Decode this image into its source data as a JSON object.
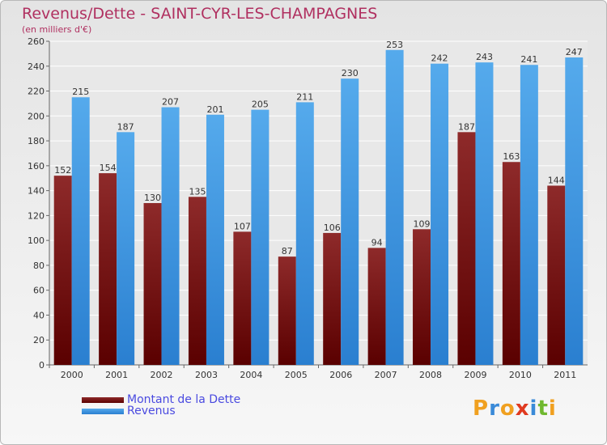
{
  "chart_data": {
    "type": "bar",
    "title": "Revenus/Dette - SAINT-CYR-LES-CHAMPAGNES",
    "subtitle": "(en milliers d'€)",
    "categories": [
      "2000",
      "2001",
      "2002",
      "2003",
      "2004",
      "2005",
      "2006",
      "2007",
      "2008",
      "2009",
      "2010",
      "2011"
    ],
    "series": [
      {
        "name": "Montant de la Dette",
        "color": "#8b1a1a",
        "values": [
          152,
          154,
          130,
          135,
          107,
          87,
          106,
          94,
          109,
          187,
          163,
          144
        ]
      },
      {
        "name": "Revenus",
        "color": "#3d96e0",
        "values": [
          215,
          187,
          207,
          201,
          205,
          211,
          230,
          253,
          242,
          243,
          241,
          247
        ]
      }
    ],
    "ylim": [
      0,
      260
    ],
    "yticks": [
      0,
      20,
      40,
      60,
      80,
      100,
      120,
      140,
      160,
      180,
      200,
      220,
      240,
      260
    ],
    "grid": true,
    "legend_position": "bottom-left"
  },
  "logo_text": "Proxiti"
}
